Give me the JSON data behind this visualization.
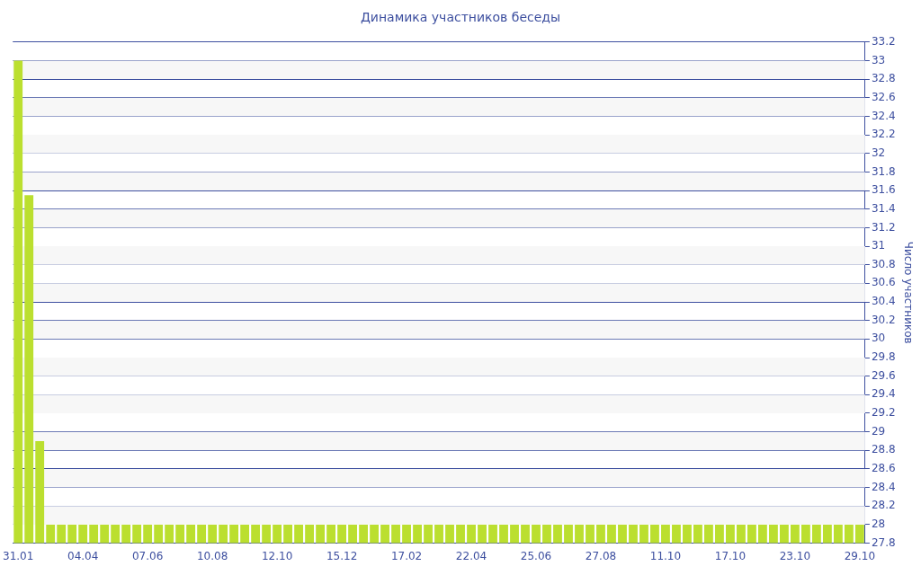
{
  "chart_data": {
    "type": "bar",
    "title": "Динамика участников беседы",
    "ylabel": "Число участников",
    "categories": [
      "31.01",
      null,
      null,
      null,
      null,
      null,
      "04.04",
      null,
      null,
      null,
      null,
      null,
      "07.06",
      null,
      null,
      null,
      null,
      null,
      "10.08",
      null,
      null,
      null,
      null,
      null,
      "12.10",
      null,
      null,
      null,
      null,
      null,
      "15.12",
      null,
      null,
      null,
      null,
      null,
      "17.02",
      null,
      null,
      null,
      null,
      null,
      "22.04",
      null,
      null,
      null,
      null,
      null,
      "25.06",
      null,
      null,
      null,
      null,
      null,
      "27.08",
      null,
      null,
      null,
      null,
      null,
      "11.10",
      null,
      null,
      null,
      null,
      null,
      "17.10",
      null,
      null,
      null,
      null,
      null,
      "23.10",
      null,
      null,
      null,
      null,
      null,
      "29.10"
    ],
    "values": [
      33,
      31.55,
      28.9,
      28,
      28,
      28,
      28,
      28,
      28,
      28,
      28,
      28,
      28,
      28,
      28,
      28,
      28,
      28,
      28,
      28,
      28,
      28,
      28,
      28,
      28,
      28,
      28,
      28,
      28,
      28,
      28,
      28,
      28,
      28,
      28,
      28,
      28,
      28,
      28,
      28,
      28,
      28,
      28,
      28,
      28,
      28,
      28,
      28,
      28,
      28,
      28,
      28,
      28,
      28,
      28,
      28,
      28,
      28,
      28,
      28,
      28,
      28,
      28,
      28,
      28,
      28,
      28,
      28,
      28,
      28,
      28,
      28,
      28,
      28,
      28,
      28,
      28,
      28,
      28
    ],
    "color": "#bbdf2f",
    "ylim": [
      27.8,
      33.2
    ],
    "yticks": [
      27.8,
      28,
      28.2,
      28.4,
      28.6,
      28.8,
      29,
      29.2,
      29.4,
      29.6,
      29.8,
      30,
      30.2,
      30.4,
      30.6,
      30.8,
      31,
      31.2,
      31.4,
      31.6,
      31.8,
      32,
      32.2,
      32.4,
      32.6,
      32.8,
      33,
      33.2
    ],
    "grid": "y",
    "legend": false
  }
}
